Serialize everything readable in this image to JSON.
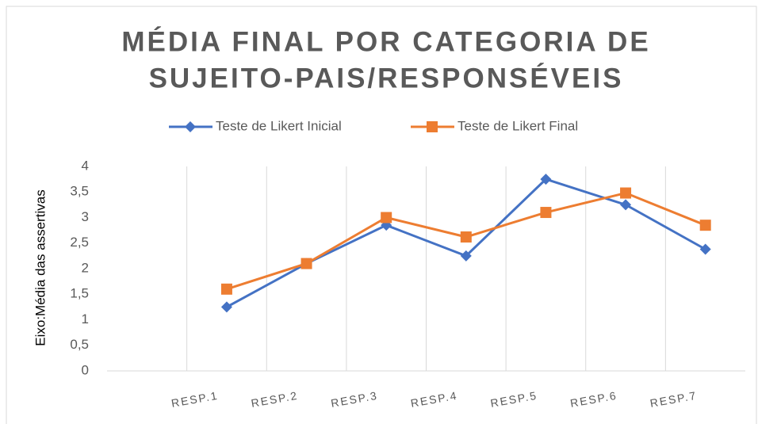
{
  "chart_data": {
    "type": "line",
    "title_lines": [
      "MÉDIA FINAL POR CATEGORIA DE",
      "SUJEITO-PAIS/RESPONSÉVEIS"
    ],
    "y_label": "Eixo:Média das assertivas",
    "categories": [
      null,
      "RESP.1",
      "RESP.2",
      "RESP.3",
      "RESP.4",
      "RESP.5",
      "RESP.6",
      "RESP.7"
    ],
    "series": [
      {
        "name": "Teste de Likert Inicial",
        "color": "#4472c4",
        "marker": "diamond",
        "values": [
          null,
          1.25,
          2.1,
          2.85,
          2.25,
          3.75,
          3.25,
          2.38
        ]
      },
      {
        "name": "Teste de Likert Final",
        "color": "#ed7d31",
        "marker": "square",
        "values": [
          null,
          1.6,
          2.1,
          3.0,
          2.62,
          3.1,
          3.48,
          2.85
        ]
      }
    ],
    "ylim": [
      0,
      4
    ],
    "yticks": [
      0,
      {
        "value": 0.5,
        "label": "0,5"
      },
      1,
      {
        "value": 1.5,
        "label": "1,5"
      },
      2,
      {
        "value": 2.5,
        "label": "2,5"
      },
      3,
      {
        "value": 3.5,
        "label": "3,5"
      },
      4
    ],
    "grid": "vertical"
  }
}
